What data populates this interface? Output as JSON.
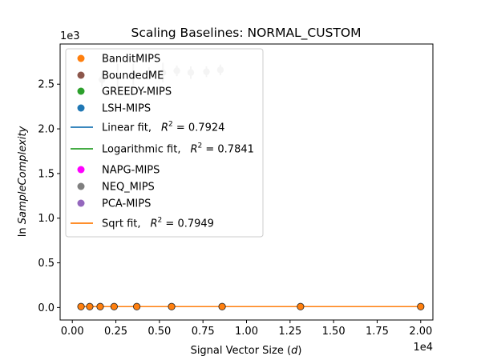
{
  "chart_data": {
    "type": "scatter",
    "title": "Scaling Baselines: NORMAL_CUSTOM",
    "xlabel": "Signal Vector Size (d)",
    "xlabel_parts": {
      "prefix": "Signal Vector Size (",
      "var": "d",
      "suffix": ")"
    },
    "ylabel_parts": {
      "prefix": "ln ",
      "var": "SampleComplexity"
    },
    "x_multiplier": "1e4",
    "y_multiplier": "1e3",
    "xlim": [
      -0.07,
      2.07
    ],
    "ylim": [
      -0.14,
      2.95
    ],
    "x_ticks": [
      0.0,
      0.25,
      0.5,
      0.75,
      1.0,
      1.25,
      1.5,
      1.75,
      2.0
    ],
    "x_tick_labels": [
      "0.00",
      "0.25",
      "0.50",
      "0.75",
      "1.00",
      "1.25",
      "1.50",
      "1.75",
      "2.00"
    ],
    "y_ticks": [
      0.0,
      0.5,
      1.0,
      1.5,
      2.0,
      2.5
    ],
    "y_tick_labels": [
      "0.0",
      "0.5",
      "1.0",
      "1.5",
      "2.0",
      "2.5"
    ],
    "grid": false,
    "legend_position": "upper-left",
    "neq_points": [
      {
        "x": 0.17,
        "y": 2.55,
        "err": 0.08
      },
      {
        "x": 0.26,
        "y": 2.59,
        "err": 0.14
      },
      {
        "x": 0.35,
        "y": 2.61,
        "err": 0.12
      },
      {
        "x": 0.44,
        "y": 2.62,
        "err": 0.07
      },
      {
        "x": 0.52,
        "y": 2.63,
        "err": 0.11
      },
      {
        "x": 0.6,
        "y": 2.65,
        "err": 0.06
      },
      {
        "x": 0.68,
        "y": 2.63,
        "err": 0.07
      },
      {
        "x": 0.77,
        "y": 2.64,
        "err": 0.06
      },
      {
        "x": 0.85,
        "y": 2.66,
        "err": 0.06
      }
    ],
    "low_points_x": [
      0.05,
      0.1,
      0.16,
      0.24,
      0.37,
      0.57,
      0.86,
      1.31,
      2.0
    ],
    "low_points_y": 0.01,
    "legend": [
      {
        "kind": "marker",
        "color": "#ff7f0e",
        "label": "BanditMIPS"
      },
      {
        "kind": "marker",
        "color": "#8c564b",
        "label": "BoundedME"
      },
      {
        "kind": "marker",
        "color": "#2ca02c",
        "label": "GREEDY-MIPS"
      },
      {
        "kind": "marker",
        "color": "#1f77b4",
        "label": "LSH-MIPS"
      },
      {
        "kind": "line",
        "color": "#1f77b4",
        "label": "Linear fit,",
        "r2": "0.7924"
      },
      {
        "kind": "line",
        "color": "#2ca02c",
        "label": "Logarithmic fit,",
        "r2": "0.7841"
      },
      {
        "kind": "marker",
        "color": "#ff00ff",
        "label": "NAPG-MIPS"
      },
      {
        "kind": "marker",
        "color": "#7f7f7f",
        "label": "NEQ_MIPS"
      },
      {
        "kind": "marker",
        "color": "#9467bd",
        "label": "PCA-MIPS"
      },
      {
        "kind": "line",
        "color": "#ff7f0e",
        "label": "Sqrt fit,",
        "r2": "0.7949"
      }
    ]
  }
}
